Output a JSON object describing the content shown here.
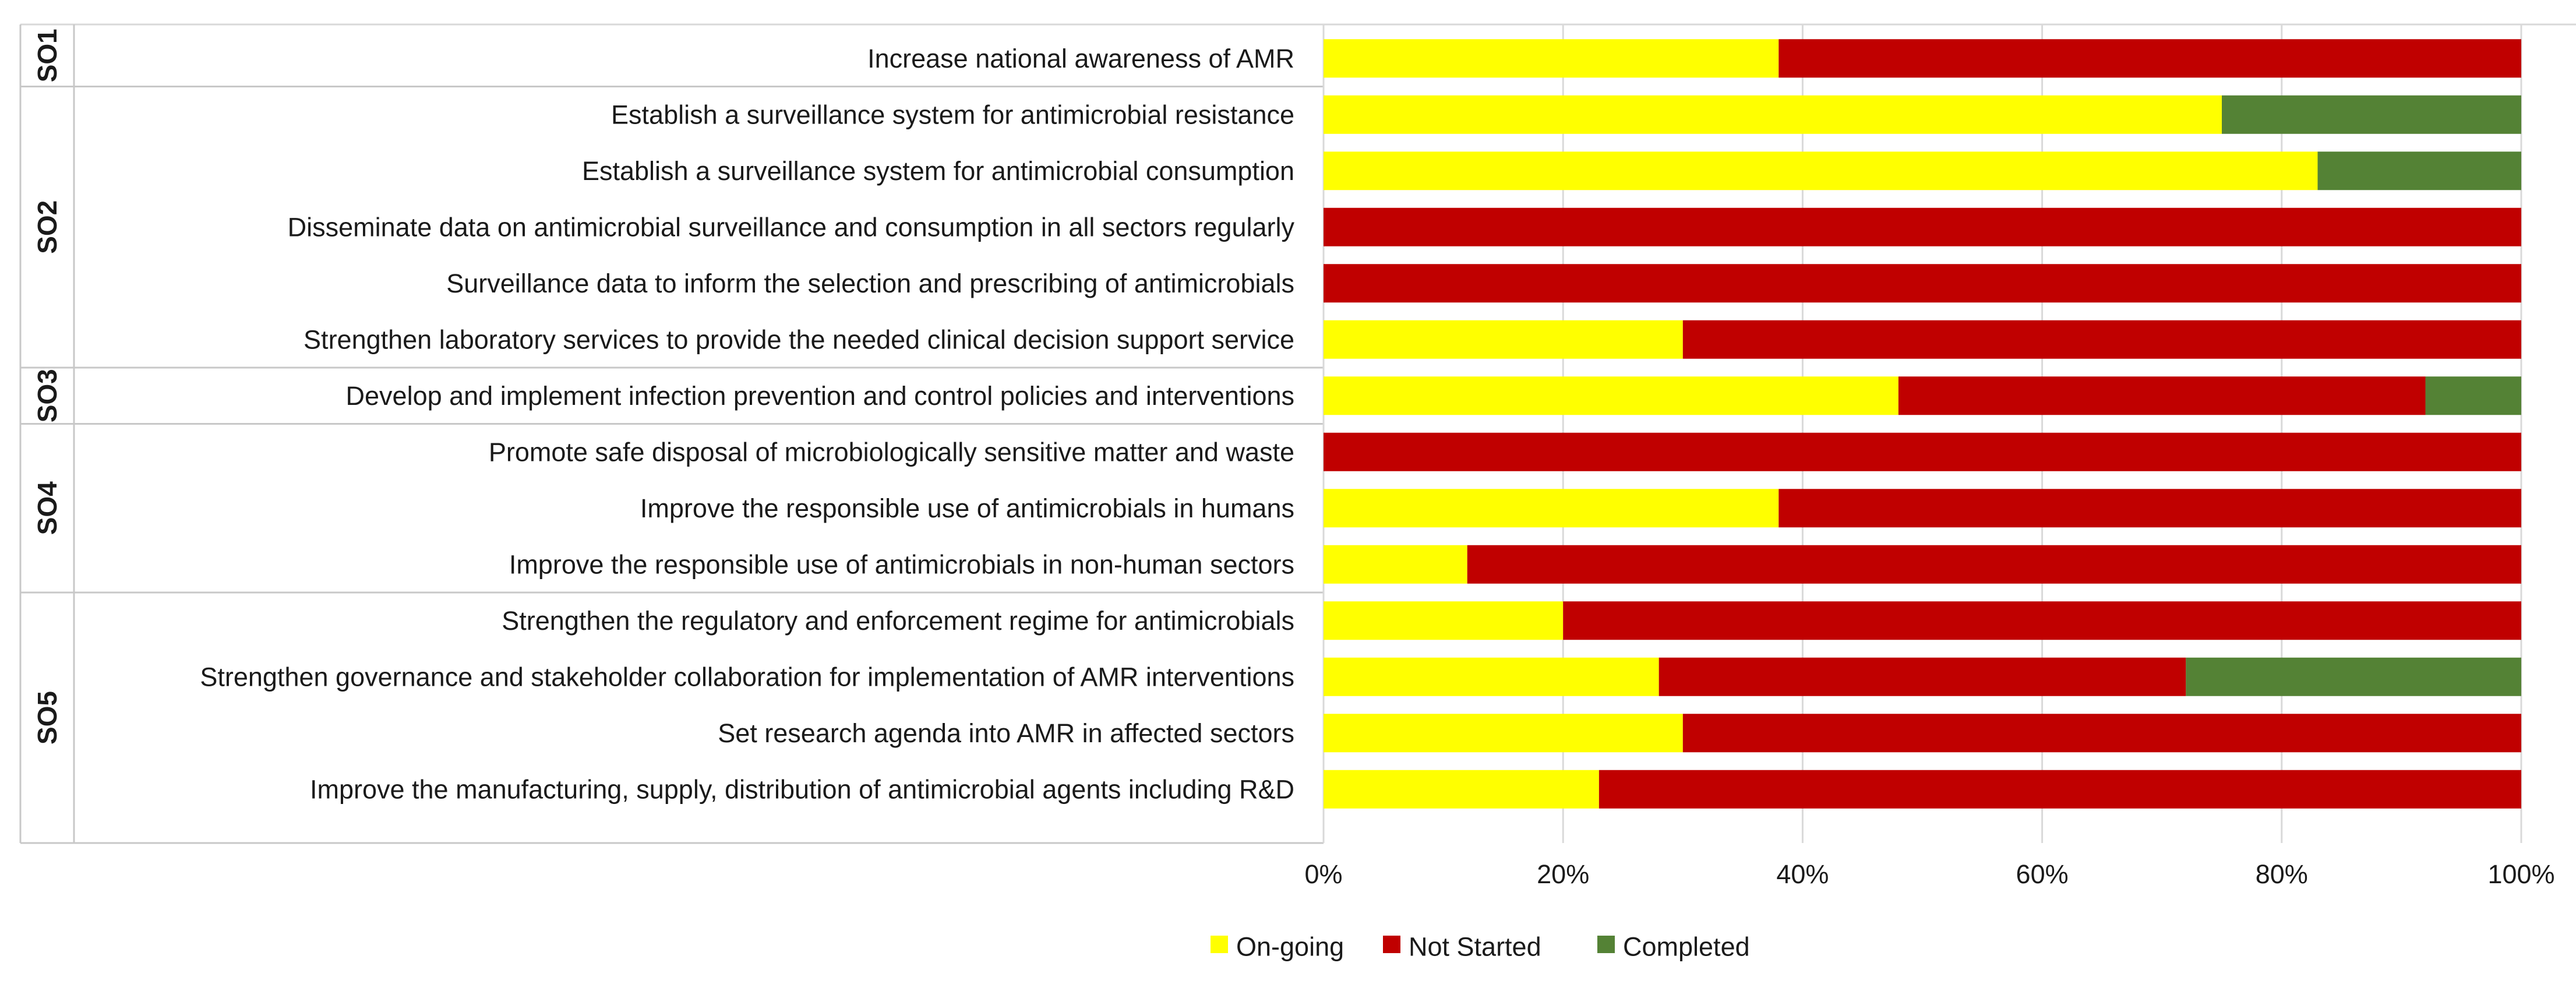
{
  "chart_data": {
    "type": "bar",
    "stacked": true,
    "orientation": "horizontal",
    "xlim": [
      0,
      100
    ],
    "xticks": [
      "0%",
      "20%",
      "40%",
      "60%",
      "80%",
      "100%"
    ],
    "groups": [
      {
        "label": "SO1",
        "start": 0,
        "count": 1
      },
      {
        "label": "SO2",
        "start": 1,
        "count": 5
      },
      {
        "label": "SO3",
        "start": 6,
        "count": 1
      },
      {
        "label": "SO4",
        "start": 7,
        "count": 3
      },
      {
        "label": "SO5",
        "start": 10,
        "count": 4
      }
    ],
    "categories": [
      "Increase national awareness of AMR",
      "Establish a surveillance system for antimicrobial resistance",
      "Establish a surveillance system for antimicrobial consumption",
      "Disseminate data on antimicrobial surveillance and consumption in all sectors regularly",
      "Surveillance data to inform the selection and prescribing of antimicrobials",
      "Strengthen laboratory services to provide the needed clinical decision support service",
      "Develop and implement infection prevention and control policies and interventions",
      "Promote safe disposal of microbiologically sensitive matter and waste",
      "Improve the responsible use of antimicrobials in humans",
      "Improve the responsible use of antimicrobials in non-human sectors",
      "Strengthen the regulatory and enforcement regime for antimicrobials",
      "Strengthen governance and stakeholder collaboration for implementation of AMR interventions",
      "Set research agenda into AMR in affected sectors",
      "Improve the manufacturing, supply, distribution of antimicrobial agents including R&D"
    ],
    "series": [
      {
        "name": "On-going",
        "color": "#FFFF00",
        "values": [
          38,
          75,
          83,
          0,
          0,
          30,
          48,
          0,
          38,
          12,
          20,
          28,
          30,
          23
        ]
      },
      {
        "name": "Not Started",
        "color": "#C00000",
        "values": [
          62,
          0,
          0,
          100,
          100,
          70,
          44,
          100,
          62,
          88,
          80,
          44,
          70,
          77
        ]
      },
      {
        "name": "Completed",
        "color": "#548235",
        "values": [
          0,
          25,
          17,
          0,
          0,
          0,
          8,
          0,
          0,
          0,
          0,
          28,
          0,
          0
        ]
      }
    ],
    "legend_position": "bottom"
  }
}
